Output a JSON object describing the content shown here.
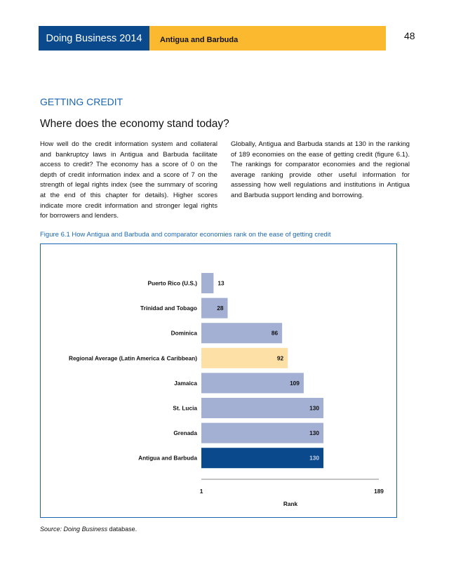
{
  "header": {
    "report": "Doing Business 2014",
    "economy": "Antigua and Barbuda",
    "page_number": "48"
  },
  "section_title": "GETTING CREDIT",
  "subtitle": "Where does the economy stand today?",
  "paragraphs": [
    "How well do the credit information system and collateral and bankruptcy laws in Antigua and Barbuda facilitate access to credit? The economy has a score of 0 on the depth of credit information index and a score of 7 on the strength of legal rights index (see the summary of scoring at the end of this chapter for details). Higher scores indicate more credit information and stronger legal rights for borrowers and lenders.",
    "Globally, Antigua and Barbuda stands at 130 in the ranking of 189 economies on the ease of getting credit (figure 6.1). The rankings for comparator economies and the regional average ranking provide other useful information for assessing how well regulations and institutions in Antigua and Barbuda support lending and borrowing."
  ],
  "figure_title": "Figure 6.1 How Antigua and Barbuda and comparator economies rank on the ease of getting credit",
  "source": {
    "label": "Source:",
    "italic": "Doing Business",
    "rest": " database."
  },
  "chart_data": {
    "type": "bar",
    "orientation": "horizontal",
    "categories": [
      "Puerto Rico (U.S.)",
      "Trinidad and Tobago",
      "Dominica",
      "Regional Average (Latin America & Caribbean)",
      "Jamaica",
      "St. Lucia",
      "Grenada",
      "Antigua and Barbuda"
    ],
    "values": [
      13,
      28,
      86,
      92,
      109,
      130,
      130,
      130
    ],
    "colors": [
      "#a3b0d4",
      "#a3b0d4",
      "#a3b0d4",
      "#fde0a6",
      "#a3b0d4",
      "#a3b0d4",
      "#a3b0d4",
      "#0a4a8c"
    ],
    "xlabel": "Rank",
    "xlim": [
      1,
      189
    ],
    "xticks": [
      "1",
      "189"
    ]
  }
}
